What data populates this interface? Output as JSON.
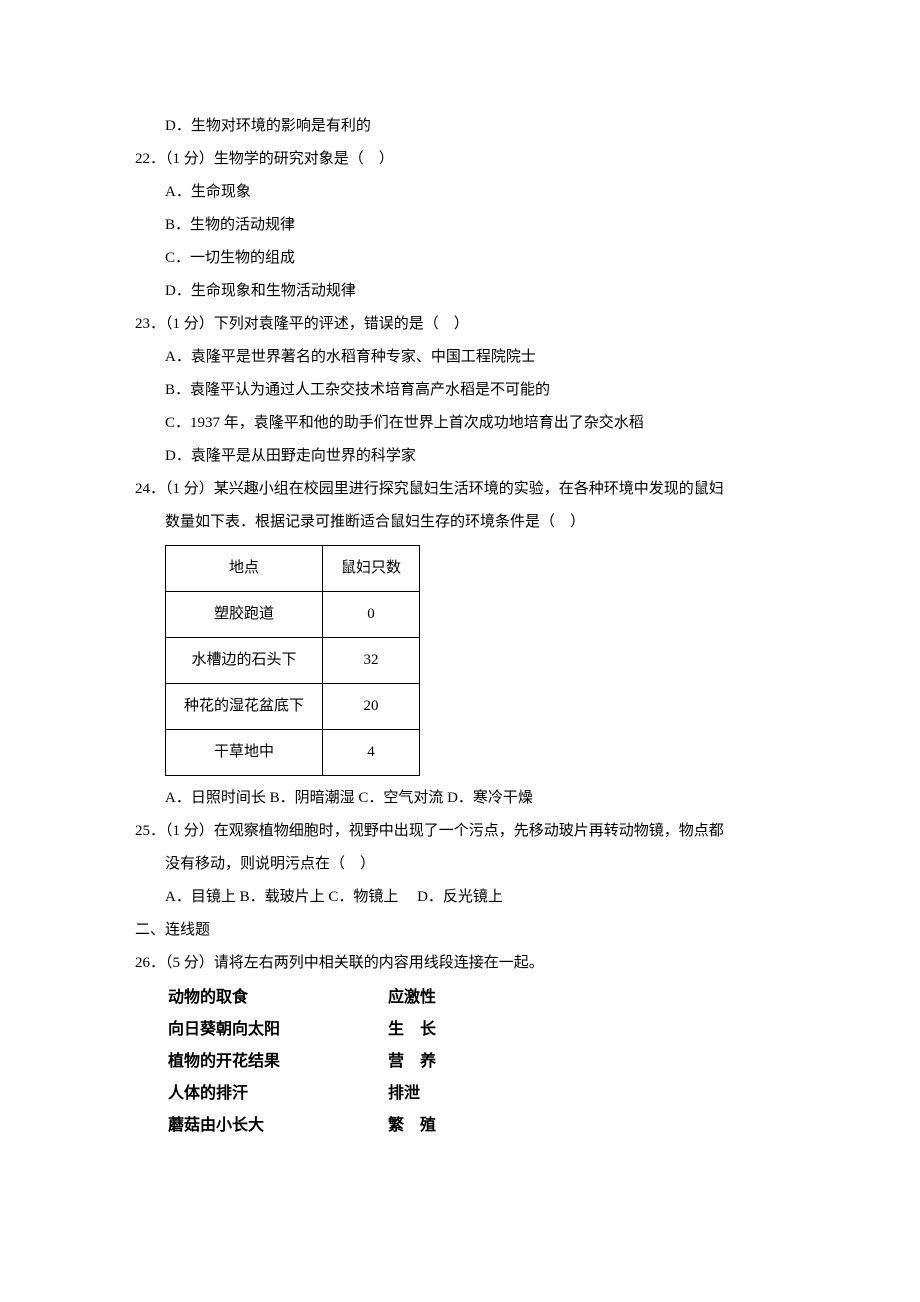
{
  "q21": {
    "optD": "D．生物对环境的影响是有利的"
  },
  "q22": {
    "stem": "22．（1 分）生物学的研究对象是（　）",
    "optA": "A．生命现象",
    "optB": "B．生物的活动规律",
    "optC": "C．一切生物的组成",
    "optD": "D．生命现象和生物活动规律"
  },
  "q23": {
    "stem": "23．（1 分）下列对袁隆平的评述，错误的是（　）",
    "optA": "A．袁隆平是世界著名的水稻育种专家、中国工程院院士",
    "optB": "B．袁隆平认为通过人工杂交技术培育高产水稻是不可能的",
    "optC": "C．1937 年，袁隆平和他的助手们在世界上首次成功地培育出了杂交水稻",
    "optD": "D．袁隆平是从田野走向世界的科学家"
  },
  "q24": {
    "stem1": "24．（1 分）某兴趣小组在校园里进行探究鼠妇生活环境的实验，在各种环境中发现的鼠妇",
    "stem2": "数量如下表．根据记录可推断适合鼠妇生存的环境条件是（　）",
    "table": {
      "header": [
        "地点",
        "鼠妇只数"
      ],
      "rows": [
        [
          "塑胶跑道",
          "0"
        ],
        [
          "水槽边的石头下",
          "32"
        ],
        [
          "种花的湿花盆底下",
          "20"
        ],
        [
          "干草地中",
          "4"
        ]
      ]
    },
    "options": "A．日照时间长 B．阴暗潮湿 C．空气对流 D．寒冷干燥"
  },
  "q25": {
    "stem1": "25．（1 分）在观察植物细胞时，视野中出现了一个污点，先移动玻片再转动物镜，物点都",
    "stem2": "没有移动，则说明污点在（　）",
    "options": "A．目镜上 B．载玻片上 C．物镜上　 D．反光镜上"
  },
  "section2": "二、连线题",
  "q26": {
    "stem": "26．（5 分）请将左右两列中相关联的内容用线段连接在一起。",
    "pairs": [
      {
        "left": "动物的取食",
        "right": "应激性"
      },
      {
        "left": "向日葵朝向太阳",
        "right": "生　长"
      },
      {
        "left": "植物的开花结果",
        "right": "营　养"
      },
      {
        "left": "人体的排汗",
        "right": "排泄"
      },
      {
        "left": "蘑菇由小长大",
        "right": "繁　殖"
      }
    ]
  }
}
